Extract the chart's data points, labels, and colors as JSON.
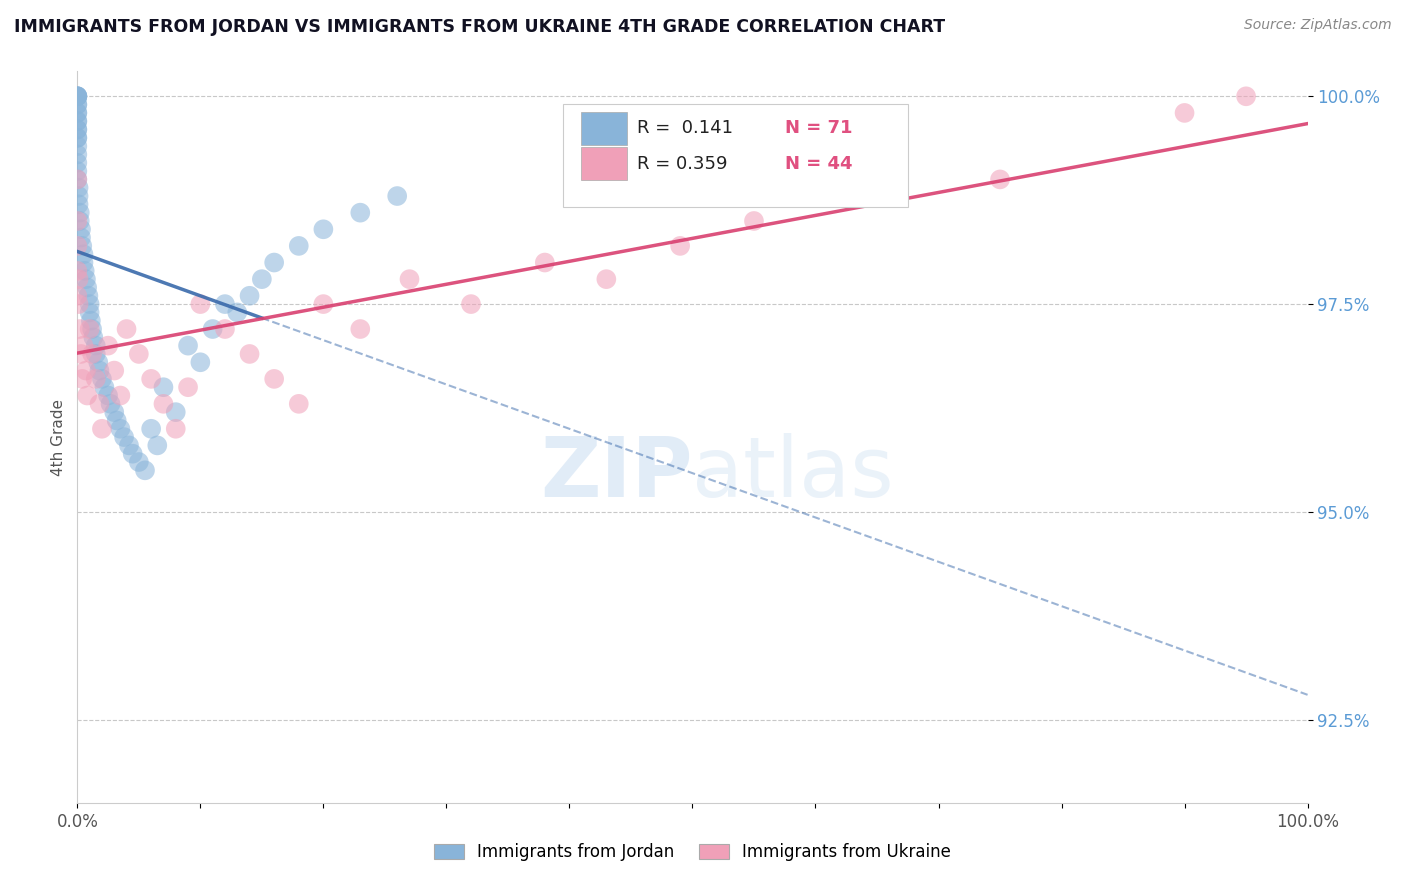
{
  "title": "IMMIGRANTS FROM JORDAN VS IMMIGRANTS FROM UKRAINE 4TH GRADE CORRELATION CHART",
  "source": "Source: ZipAtlas.com",
  "ylabel": "4th Grade",
  "legend1_R": "0.141",
  "legend1_N": "71",
  "legend2_R": "0.359",
  "legend2_N": "44",
  "color_jordan": "#89b4d9",
  "color_ukraine": "#f0a0b8",
  "line_jordan": "#3a6aab",
  "line_ukraine": "#d94070",
  "watermark_color": "#c5daf0",
  "ytick_color": "#5b9bd5",
  "jordan_x": [
    0.0,
    0.0,
    0.0,
    0.0,
    0.0,
    0.0,
    0.0,
    0.0,
    0.0,
    0.0,
    0.0,
    0.0,
    0.0,
    0.0,
    0.0,
    0.0,
    0.0,
    0.0,
    0.0,
    0.0,
    0.001,
    0.001,
    0.001,
    0.002,
    0.002,
    0.003,
    0.003,
    0.004,
    0.005,
    0.005,
    0.006,
    0.007,
    0.008,
    0.009,
    0.01,
    0.01,
    0.011,
    0.012,
    0.013,
    0.015,
    0.015,
    0.017,
    0.018,
    0.02,
    0.022,
    0.025,
    0.027,
    0.03,
    0.032,
    0.035,
    0.038,
    0.042,
    0.045,
    0.05,
    0.055,
    0.06,
    0.065,
    0.07,
    0.08,
    0.09,
    0.1,
    0.11,
    0.12,
    0.13,
    0.14,
    0.15,
    0.16,
    0.18,
    0.2,
    0.23,
    0.26
  ],
  "jordan_y": [
    1.0,
    1.0,
    1.0,
    1.0,
    1.0,
    0.999,
    0.999,
    0.998,
    0.998,
    0.997,
    0.997,
    0.996,
    0.996,
    0.995,
    0.995,
    0.994,
    0.993,
    0.992,
    0.991,
    0.99,
    0.989,
    0.988,
    0.987,
    0.986,
    0.985,
    0.984,
    0.983,
    0.982,
    0.981,
    0.98,
    0.979,
    0.978,
    0.977,
    0.976,
    0.975,
    0.974,
    0.973,
    0.972,
    0.971,
    0.97,
    0.969,
    0.968,
    0.967,
    0.966,
    0.965,
    0.964,
    0.963,
    0.962,
    0.961,
    0.96,
    0.959,
    0.958,
    0.957,
    0.956,
    0.955,
    0.96,
    0.958,
    0.965,
    0.962,
    0.97,
    0.968,
    0.972,
    0.975,
    0.974,
    0.976,
    0.978,
    0.98,
    0.982,
    0.984,
    0.986,
    0.988
  ],
  "ukraine_x": [
    0.0,
    0.0,
    0.0,
    0.0,
    0.0,
    0.001,
    0.001,
    0.002,
    0.003,
    0.004,
    0.005,
    0.007,
    0.008,
    0.01,
    0.012,
    0.015,
    0.018,
    0.02,
    0.025,
    0.03,
    0.035,
    0.04,
    0.05,
    0.06,
    0.07,
    0.08,
    0.09,
    0.1,
    0.12,
    0.14,
    0.16,
    0.18,
    0.2,
    0.23,
    0.27,
    0.32,
    0.38,
    0.43,
    0.49,
    0.55,
    0.65,
    0.75,
    0.9,
    0.95
  ],
  "ukraine_y": [
    0.99,
    0.985,
    0.982,
    0.979,
    0.976,
    0.978,
    0.975,
    0.972,
    0.969,
    0.966,
    0.97,
    0.967,
    0.964,
    0.972,
    0.969,
    0.966,
    0.963,
    0.96,
    0.97,
    0.967,
    0.964,
    0.972,
    0.969,
    0.966,
    0.963,
    0.96,
    0.965,
    0.975,
    0.972,
    0.969,
    0.966,
    0.963,
    0.975,
    0.972,
    0.978,
    0.975,
    0.98,
    0.978,
    0.982,
    0.985,
    0.988,
    0.99,
    0.998,
    1.0
  ],
  "xlim": [
    0.0,
    1.0
  ],
  "ylim": [
    0.915,
    1.003
  ],
  "yticks": [
    0.925,
    0.95,
    0.975,
    1.0
  ],
  "ytick_labels": [
    "92.5%",
    "95.0%",
    "97.5%",
    "100.0%"
  ]
}
